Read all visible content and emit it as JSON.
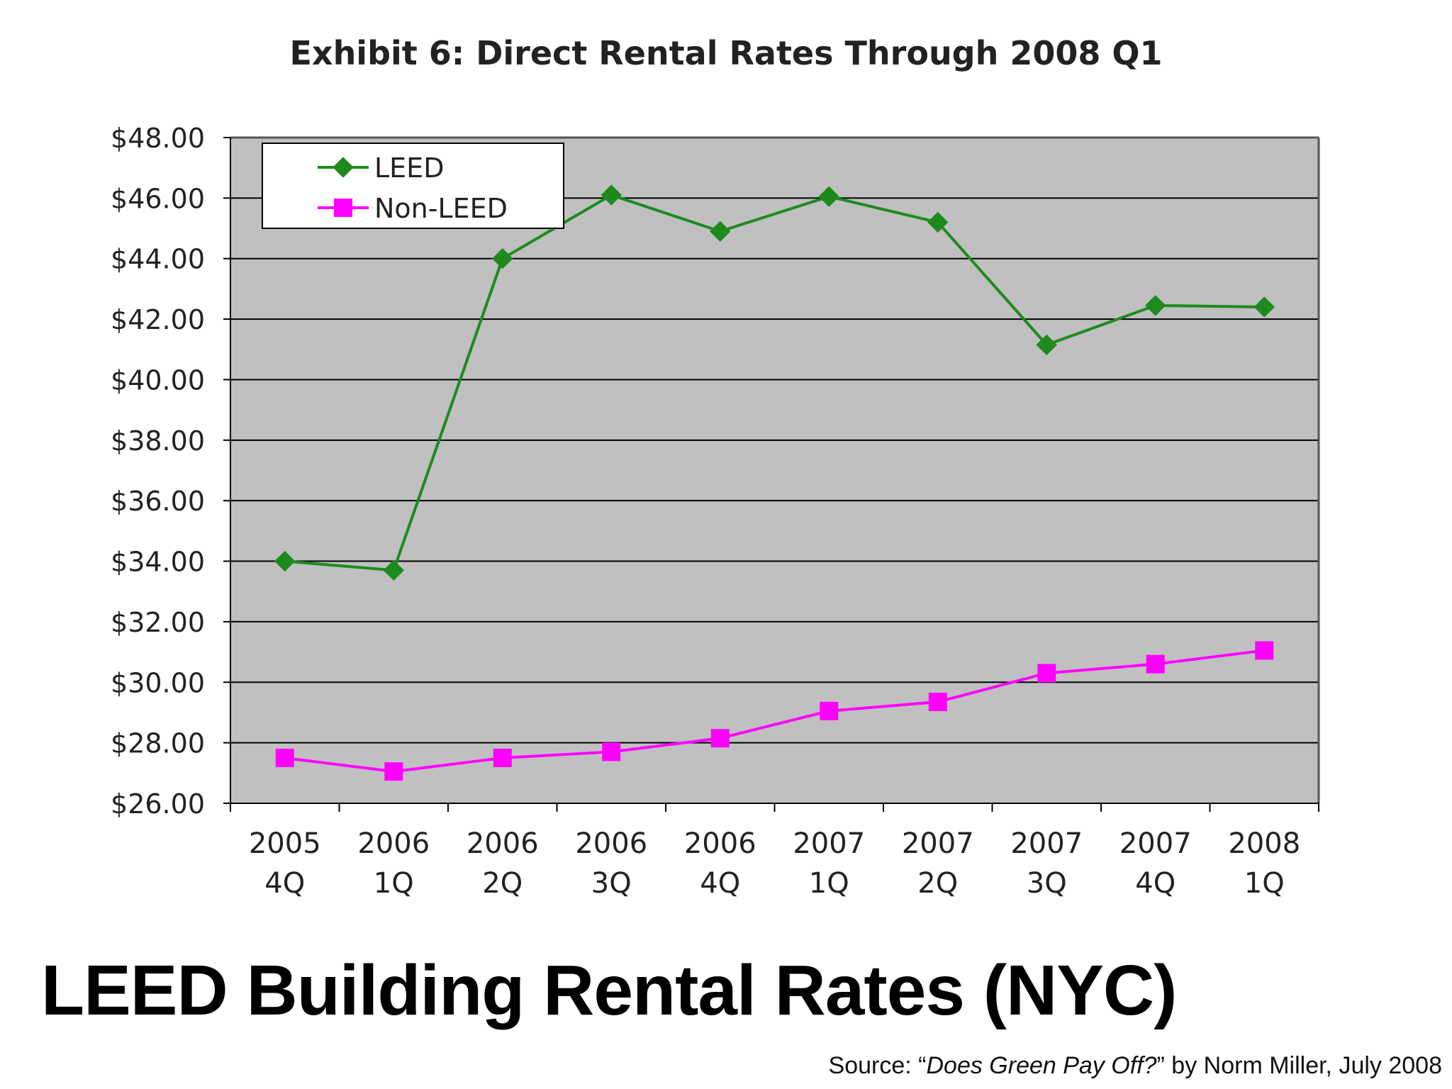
{
  "chart_data": {
    "type": "line",
    "title": "Exhibit 6: Direct Rental Rates Through 2008 Q1",
    "categories": [
      [
        "2005",
        "4Q"
      ],
      [
        "2006",
        "1Q"
      ],
      [
        "2006",
        "2Q"
      ],
      [
        "2006",
        "3Q"
      ],
      [
        "2006",
        "4Q"
      ],
      [
        "2007",
        "1Q"
      ],
      [
        "2007",
        "2Q"
      ],
      [
        "2007",
        "3Q"
      ],
      [
        "2007",
        "4Q"
      ],
      [
        "2008",
        "1Q"
      ]
    ],
    "series": [
      {
        "name": "LEED",
        "color": "#1e8a1e",
        "marker": "diamond",
        "values": [
          34.0,
          33.7,
          44.0,
          46.1,
          44.9,
          46.05,
          45.2,
          41.15,
          42.45,
          42.4
        ]
      },
      {
        "name": "Non-LEED",
        "color": "#ff00ff",
        "marker": "square",
        "values": [
          27.5,
          27.05,
          27.5,
          27.7,
          28.15,
          29.05,
          29.35,
          30.3,
          30.6,
          31.05
        ]
      }
    ],
    "ylim": [
      26,
      48
    ],
    "yticks": [
      "$26.00",
      "$28.00",
      "$30.00",
      "$32.00",
      "$34.00",
      "$36.00",
      "$38.00",
      "$40.00",
      "$42.00",
      "$44.00",
      "$46.00",
      "$48.00"
    ],
    "grid": true,
    "legend": "top-left",
    "plot_background": "#c0c0c0"
  },
  "slide": {
    "title": "LEED Building Rental Rates (NYC)",
    "source_prefix": "Source: “",
    "source_title": "Does Green Pay Off?",
    "source_suffix": "” by Norm Miller, July 2008"
  }
}
